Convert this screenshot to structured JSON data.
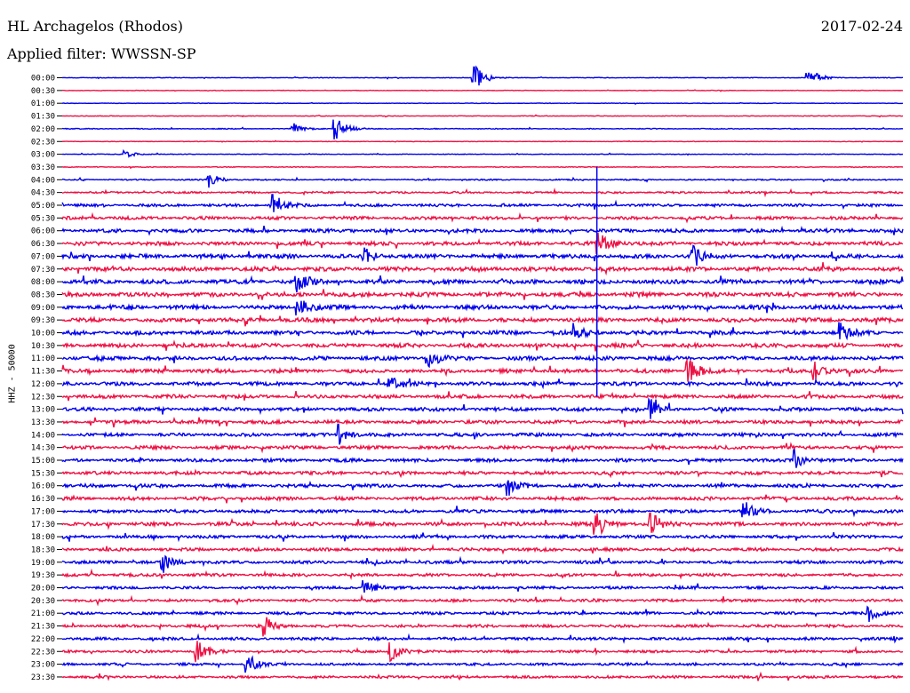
{
  "header": {
    "station": "HL Archagelos (Rhodos)",
    "date": "2017-02-24",
    "filter": "Applied filter: WWSSN-SP"
  },
  "chart_data": {
    "type": "line",
    "title": "HL Archagelos (Rhodos)",
    "ylabel": "HHZ - 50000",
    "xlabel": "",
    "tick_labels": [
      "00:00",
      "00:30",
      "01:00",
      "01:30",
      "02:00",
      "02:30",
      "03:00",
      "03:30",
      "04:00",
      "04:30",
      "05:00",
      "05:30",
      "06:00",
      "06:30",
      "07:00",
      "07:30",
      "08:00",
      "08:30",
      "09:00",
      "09:30",
      "10:00",
      "10:30",
      "11:00",
      "11:30",
      "12:00",
      "12:30",
      "13:00",
      "13:30",
      "14:00",
      "14:30",
      "15:00",
      "15:30",
      "16:00",
      "16:30",
      "17:00",
      "17:30",
      "18:00",
      "18:30",
      "19:00",
      "19:30",
      "20:00",
      "20:30",
      "21:00",
      "21:30",
      "22:00",
      "22:30",
      "23:00",
      "23:30"
    ],
    "trace_colors": [
      "#0000ee",
      "#ee1144"
    ],
    "amplitude_level": [
      0.06,
      0.05,
      0.05,
      0.06,
      0.08,
      0.05,
      0.06,
      0.07,
      0.12,
      0.18,
      0.26,
      0.3,
      0.34,
      0.36,
      0.38,
      0.4,
      0.4,
      0.42,
      0.4,
      0.4,
      0.38,
      0.38,
      0.38,
      0.36,
      0.36,
      0.34,
      0.34,
      0.34,
      0.32,
      0.32,
      0.32,
      0.32,
      0.32,
      0.32,
      0.32,
      0.34,
      0.3,
      0.3,
      0.3,
      0.28,
      0.26,
      0.26,
      0.26,
      0.26,
      0.26,
      0.24,
      0.24,
      0.24
    ],
    "events": [
      {
        "trace": 0,
        "t": 0.49,
        "amp": 1.0
      },
      {
        "trace": 0,
        "t": 0.887,
        "amp": 0.9
      },
      {
        "trace": 4,
        "t": 0.325,
        "amp": 1.0
      },
      {
        "trace": 4,
        "t": 0.275,
        "amp": 0.35
      },
      {
        "trace": 6,
        "t": 0.075,
        "amp": 0.3
      },
      {
        "trace": 8,
        "t": 0.175,
        "amp": 0.5
      },
      {
        "trace": 10,
        "t": 0.25,
        "amp": 0.9
      },
      {
        "trace": 13,
        "t": 0.638,
        "amp": 1.0
      },
      {
        "trace": 14,
        "t": 0.75,
        "amp": 0.8
      },
      {
        "trace": 14,
        "t": 0.36,
        "amp": 0.5
      },
      {
        "trace": 16,
        "t": 0.28,
        "amp": 0.8
      },
      {
        "trace": 18,
        "t": 0.28,
        "amp": 0.7
      },
      {
        "trace": 20,
        "t": 0.61,
        "amp": 0.5
      },
      {
        "trace": 20,
        "t": 0.925,
        "amp": 0.6
      },
      {
        "trace": 22,
        "t": 0.435,
        "amp": 0.7
      },
      {
        "trace": 23,
        "t": 0.745,
        "amp": 1.0
      },
      {
        "trace": 23,
        "t": 0.895,
        "amp": 0.6
      },
      {
        "trace": 24,
        "t": 0.39,
        "amp": 0.6
      },
      {
        "trace": 26,
        "t": 0.7,
        "amp": 0.6
      },
      {
        "trace": 28,
        "t": 0.33,
        "amp": 0.6
      },
      {
        "trace": 30,
        "t": 0.87,
        "amp": 0.8
      },
      {
        "trace": 32,
        "t": 0.53,
        "amp": 0.7
      },
      {
        "trace": 34,
        "t": 0.81,
        "amp": 0.7
      },
      {
        "trace": 35,
        "t": 0.635,
        "amp": 1.0
      },
      {
        "trace": 35,
        "t": 0.7,
        "amp": 0.8
      },
      {
        "trace": 38,
        "t": 0.12,
        "amp": 0.6
      },
      {
        "trace": 40,
        "t": 0.36,
        "amp": 0.6
      },
      {
        "trace": 42,
        "t": 0.96,
        "amp": 0.6
      },
      {
        "trace": 43,
        "t": 0.24,
        "amp": 0.7
      },
      {
        "trace": 45,
        "t": 0.39,
        "amp": 0.8
      },
      {
        "trace": 46,
        "t": 0.22,
        "amp": 0.7
      },
      {
        "trace": 45,
        "t": 0.16,
        "amp": 0.8
      }
    ],
    "spike_events": [
      {
        "trace": 14,
        "t": 0.636,
        "reach": 7
      },
      {
        "trace": 22,
        "t": 0.636,
        "reach": 3
      }
    ]
  }
}
